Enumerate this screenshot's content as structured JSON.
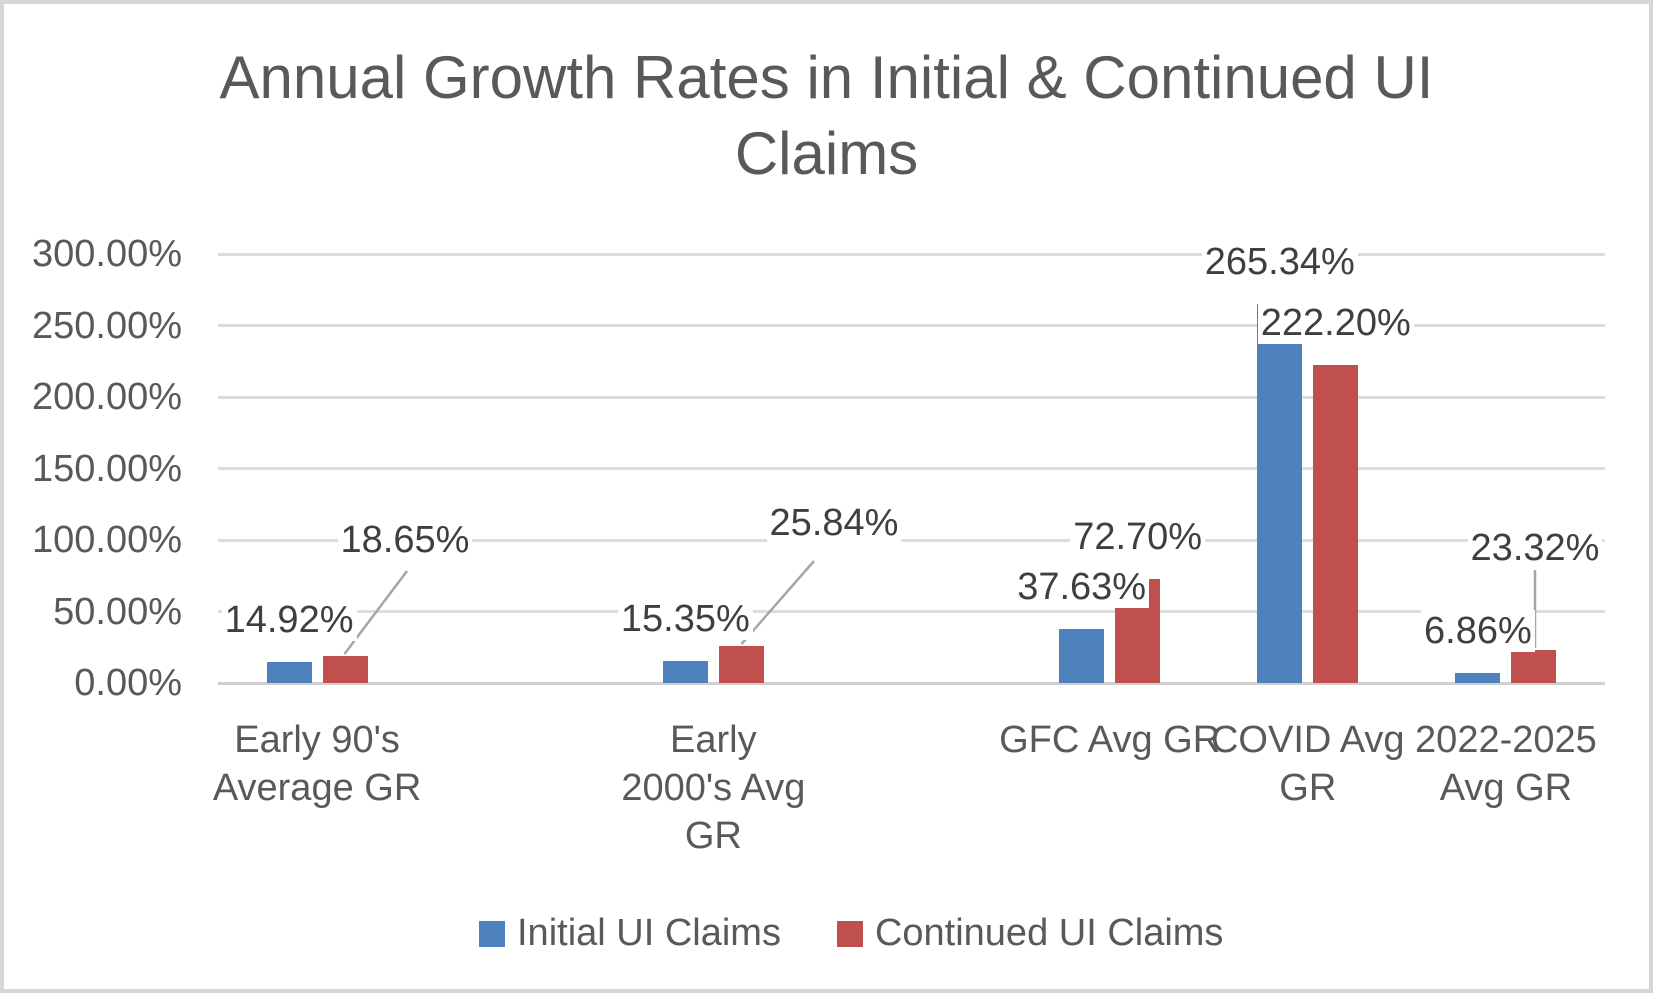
{
  "chart_data": {
    "type": "bar",
    "title": "Annual Growth Rates in Initial & Continued UI Claims",
    "categories": [
      "Early 90's Average GR",
      "Early 2000's Avg GR",
      "GFC Avg GR",
      "COVID Avg GR",
      "2022-2025 Avg GR"
    ],
    "category_lines": [
      [
        "Early 90's",
        "Average GR"
      ],
      [
        "Early",
        "2000's Avg",
        "GR"
      ],
      [
        "GFC Avg GR"
      ],
      [
        "COVID Avg",
        "GR"
      ],
      [
        "2022-2025",
        "Avg GR"
      ]
    ],
    "series": [
      {
        "name": "Initial UI Claims",
        "color": "#4F81BD",
        "values": [
          14.92,
          15.35,
          37.63,
          265.34,
          6.86
        ],
        "labels": [
          "14.92%",
          "15.35%",
          "37.63%",
          "265.34%",
          "6.86%"
        ]
      },
      {
        "name": "Continued UI Claims",
        "color": "#C0504D",
        "values": [
          18.65,
          25.84,
          72.7,
          222.2,
          23.32
        ],
        "labels": [
          "18.65%",
          "25.84%",
          "72.70%",
          "222.20%",
          "23.32%"
        ]
      }
    ],
    "y_axis": {
      "ticks": [
        "300.00%",
        "250.00%",
        "200.00%",
        "150.00%",
        "100.00%",
        "50.00%",
        "0.00%"
      ],
      "min": 0,
      "max": 300
    },
    "grid": true,
    "legend_position": "bottom"
  },
  "colors": {
    "gridline": "#DCDCDC",
    "axis_line": "#D0D0D0",
    "leader_line": "#A6A6A6",
    "axis_text": "#595959",
    "data_label_text": "#3F3F3F",
    "frame_border": "#D6D6D6"
  }
}
